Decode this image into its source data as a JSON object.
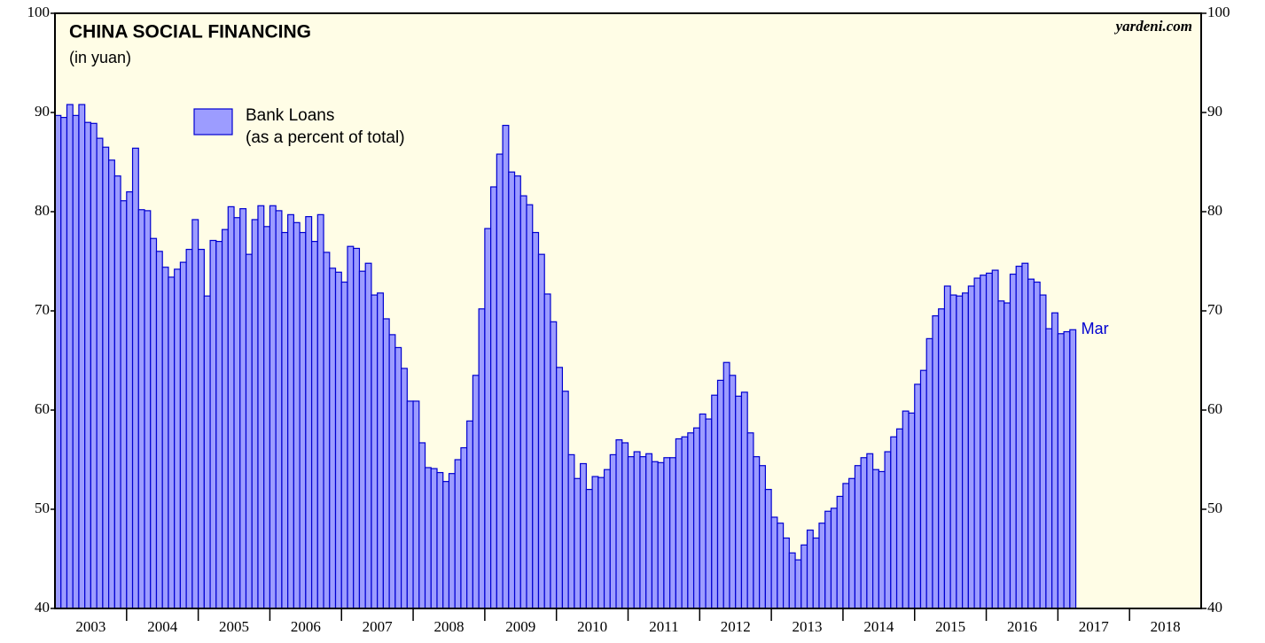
{
  "chart_data": {
    "type": "bar",
    "title": "CHINA SOCIAL FINANCING",
    "subtitle": "(in yuan)",
    "source": "yardeni.com",
    "series": [
      {
        "name": "Bank Loans",
        "name_note": "(as a percent of total)",
        "color": "#9c9cff",
        "edge_color": "#0000d0",
        "values": [
          89.7,
          89.5,
          90.8,
          89.7,
          90.8,
          89.0,
          88.9,
          87.4,
          86.5,
          85.2,
          83.6,
          81.1,
          82.0,
          86.4,
          80.2,
          80.1,
          77.3,
          76.0,
          74.4,
          73.4,
          74.2,
          74.9,
          76.2,
          79.2,
          76.2,
          71.5,
          77.1,
          77.0,
          78.2,
          80.5,
          79.4,
          80.3,
          75.7,
          79.2,
          80.6,
          78.5,
          80.6,
          80.1,
          77.9,
          79.7,
          78.9,
          77.9,
          79.5,
          77.0,
          79.7,
          75.9,
          74.3,
          73.9,
          72.9,
          76.5,
          76.3,
          74.0,
          74.8,
          71.6,
          71.8,
          69.2,
          67.6,
          66.3,
          64.2,
          60.9,
          60.9,
          56.7,
          54.2,
          54.1,
          53.7,
          52.8,
          53.6,
          55.0,
          56.2,
          58.9,
          63.5,
          70.2,
          78.3,
          82.5,
          85.8,
          88.7,
          84.0,
          83.6,
          81.6,
          80.7,
          77.9,
          75.7,
          71.7,
          68.9,
          64.3,
          61.9,
          55.5,
          53.1,
          54.6,
          52.0,
          53.3,
          53.2,
          54.0,
          55.5,
          57.0,
          56.7,
          55.3,
          55.8,
          55.3,
          55.6,
          54.8,
          54.7,
          55.2,
          55.2,
          57.1,
          57.3,
          57.7,
          58.2,
          59.6,
          59.1,
          61.5,
          63.0,
          64.8,
          63.5,
          61.4,
          61.8,
          57.7,
          55.3,
          54.4,
          52.0,
          49.2,
          48.6,
          47.1,
          45.6,
          44.9,
          46.4,
          47.9,
          47.1,
          48.6,
          49.8,
          50.1,
          51.3,
          52.6,
          53.1,
          54.4,
          55.2,
          55.6,
          54.0,
          53.8,
          55.8,
          57.3,
          58.1,
          59.9,
          59.7,
          62.6,
          64.0,
          67.2,
          69.5,
          70.2,
          72.5,
          71.6,
          71.5,
          71.8,
          72.5,
          73.3,
          73.6,
          73.8,
          74.1,
          71.0,
          70.8,
          73.7,
          74.5,
          74.8,
          73.2,
          72.9,
          71.6,
          68.2,
          69.8,
          67.7,
          67.9,
          68.1
        ]
      }
    ],
    "last_label": "Mar",
    "years": [
      "2003",
      "2004",
      "2005",
      "2006",
      "2007",
      "2008",
      "2009",
      "2010",
      "2011",
      "2012",
      "2013",
      "2014",
      "2015",
      "2016",
      "2017",
      "2018"
    ],
    "ylim": [
      40,
      100
    ],
    "yticks": [
      40,
      50,
      60,
      70,
      80,
      90,
      100
    ],
    "background": "#fffde6"
  }
}
